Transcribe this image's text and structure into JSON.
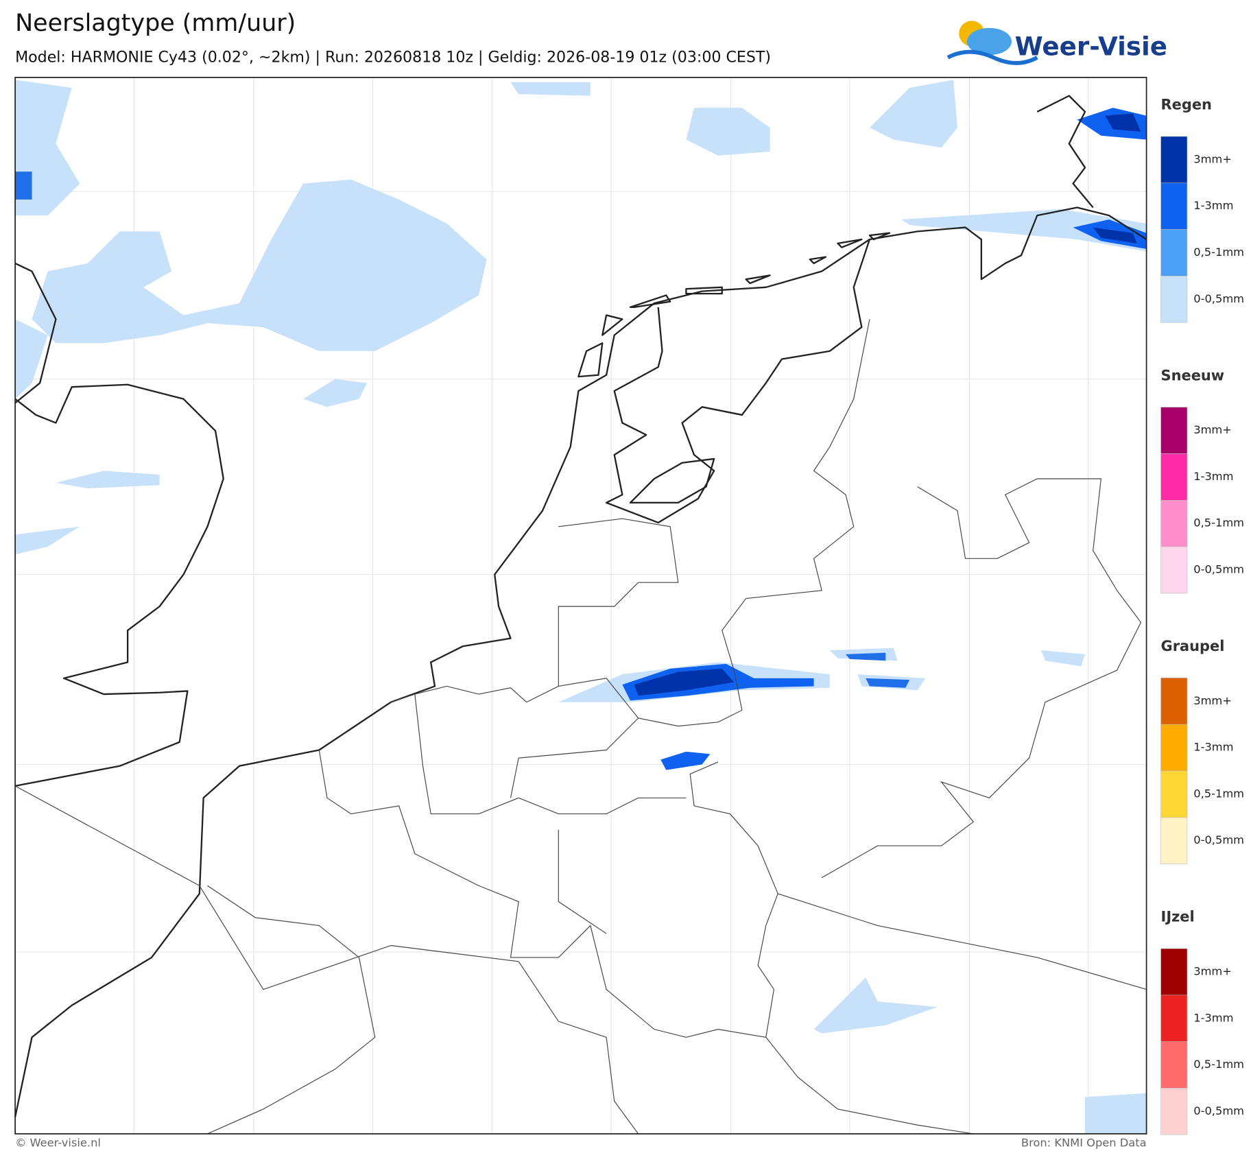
{
  "header": {
    "title": "Neerslagtype (mm/uur)",
    "subtitle": "Model: HARMONIE Cy43 (0.02°, ~2km)  |  Run: 20260818 10z  |  Geldig: 2026-08-19 01z (03:00 CEST)"
  },
  "logo": {
    "text": "Weer-Visie"
  },
  "legend": {
    "groups": [
      {
        "title": "Regen",
        "items": [
          {
            "label": "3mm+",
            "color": "#0033aa"
          },
          {
            "label": "1-3mm",
            "color": "#0f62f0"
          },
          {
            "label": "0,5-1mm",
            "color": "#4b9ff5"
          },
          {
            "label": "0-0,5mm",
            "color": "#c7e1fb"
          }
        ]
      },
      {
        "title": "Sneeuw",
        "items": [
          {
            "label": "3mm+",
            "color": "#a8006b"
          },
          {
            "label": "1-3mm",
            "color": "#ff2aa4"
          },
          {
            "label": "0,5-1mm",
            "color": "#ff8fcc"
          },
          {
            "label": "0-0,5mm",
            "color": "#ffd6ec"
          }
        ]
      },
      {
        "title": "Graupel",
        "items": [
          {
            "label": "3mm+",
            "color": "#dd6100"
          },
          {
            "label": "1-3mm",
            "color": "#ffaa00"
          },
          {
            "label": "0,5-1mm",
            "color": "#ffd633"
          },
          {
            "label": "0-0,5mm",
            "color": "#fff2c4"
          }
        ]
      },
      {
        "title": "IJzel",
        "items": [
          {
            "label": "3mm+",
            "color": "#a00000"
          },
          {
            "label": "1-3mm",
            "color": "#ee2222"
          },
          {
            "label": "0,5-1mm",
            "color": "#ff6a6a"
          },
          {
            "label": "0-0,5mm",
            "color": "#ffd0d0"
          }
        ]
      }
    ]
  },
  "footer": {
    "left": "© Weer-visie.nl",
    "right": "Bron: KNMI Open Data"
  }
}
